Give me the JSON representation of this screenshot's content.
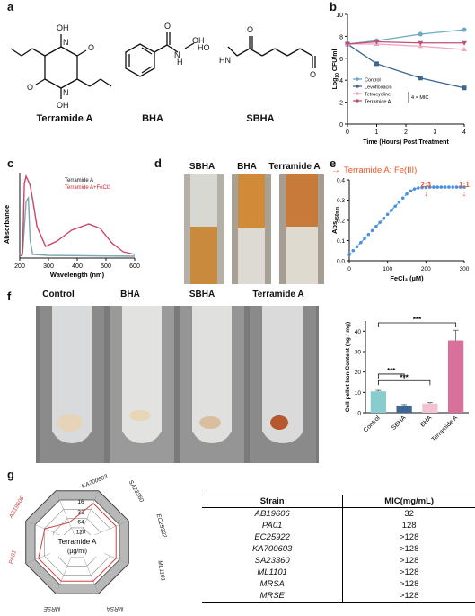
{
  "panel_labels": {
    "a": "a",
    "b": "b",
    "c": "c",
    "d": "d",
    "e": "e",
    "f": "f",
    "g": "g"
  },
  "panel_a": {
    "compounds": [
      "Terramide A",
      "BHA",
      "SBHA"
    ],
    "atoms": {
      "oh": "OH",
      "o": "O",
      "n": "N",
      "hn": "HN",
      "ho": "HO",
      "nh": "NH",
      "h": "H"
    }
  },
  "chart_data": [
    {
      "panel": "b",
      "type": "line",
      "xlabel": "Time (Hours) Post Treatment",
      "ylabel_main": "Log",
      "ylabel_sub": "10",
      "ylabel_rest": " CFU/ml",
      "xlim": [
        0,
        4
      ],
      "ylim": [
        0,
        10
      ],
      "xticks": [
        "0",
        "1",
        "2",
        "3",
        "4"
      ],
      "yticks": [
        "0",
        "2",
        "4",
        "6",
        "8",
        "10"
      ],
      "x": [
        0,
        1,
        2.5,
        4
      ],
      "series": [
        {
          "name": "Control",
          "values": [
            7.3,
            7.6,
            8.2,
            8.6
          ],
          "color": "#6aa8c7"
        },
        {
          "name": "Levofloxacin",
          "values": [
            7.3,
            5.5,
            4.2,
            3.3
          ],
          "color": "#3e6690"
        },
        {
          "name": "Tetracycline",
          "values": [
            7.3,
            7.3,
            7.1,
            6.8
          ],
          "color": "#f0a8c0"
        },
        {
          "name": "Terramide A",
          "values": [
            7.3,
            7.5,
            7.4,
            7.4
          ],
          "color": "#c0507a"
        }
      ],
      "bracket_label": "4 × MIC"
    },
    {
      "panel": "c",
      "type": "line",
      "xlabel": "Wavelength (nm)",
      "ylabel": "Absorbance",
      "xlim": [
        200,
        600
      ],
      "xticks": [
        "200",
        "300",
        "400",
        "500",
        "600"
      ],
      "series": [
        {
          "name": "Terramide A",
          "color": "#7aa6b5"
        },
        {
          "name": "Terramide A+FeCl3",
          "color": "#cc4466"
        }
      ],
      "legend_colors": [
        "#111111",
        "#cc2233"
      ]
    },
    {
      "panel": "e",
      "type": "scatter",
      "xlabel": "FeCl₃ (µM)",
      "ylabel_main": "Abs",
      "ylabel_sub": "450nm",
      "xlim": [
        0,
        300
      ],
      "ylim": [
        0,
        0.4
      ],
      "xticks": [
        "0",
        "100",
        "200",
        "300"
      ],
      "yticks": [
        "0.0",
        "0.1",
        "0.2",
        "0.3",
        "0.4"
      ],
      "x": [
        0,
        10,
        20,
        30,
        40,
        50,
        60,
        70,
        80,
        90,
        100,
        110,
        120,
        130,
        140,
        150,
        160,
        170,
        180,
        190,
        200,
        210,
        220,
        230,
        240,
        250,
        260,
        270,
        280,
        290,
        300
      ],
      "y": [
        0.03,
        0.05,
        0.07,
        0.09,
        0.11,
        0.13,
        0.15,
        0.17,
        0.19,
        0.21,
        0.23,
        0.25,
        0.27,
        0.29,
        0.31,
        0.33,
        0.345,
        0.355,
        0.36,
        0.362,
        0.363,
        0.364,
        0.364,
        0.364,
        0.364,
        0.364,
        0.364,
        0.364,
        0.364,
        0.364,
        0.364
      ],
      "annotation": "Terramide A: Fe(III)",
      "ratio_labels": [
        {
          "text": "2:3",
          "x": 200
        },
        {
          "text": "1:1",
          "x": 300
        }
      ],
      "color": "#4a90e2",
      "accent": "#ee5522"
    },
    {
      "panel": "f",
      "type": "bar",
      "ylabel": "Cell pellet Iron Content (ng / mg)",
      "categories": [
        "Control",
        "SBHA",
        "BHA",
        "Terramide A"
      ],
      "values": [
        10.5,
        3.5,
        4.5,
        35.5
      ],
      "errors": [
        0.5,
        0.5,
        0.5,
        5
      ],
      "colors": [
        "#88cccc",
        "#3e6690",
        "#f3c2d3",
        "#d7709a"
      ],
      "ylim": [
        0,
        45
      ],
      "yticks": [
        "0",
        "10",
        "20",
        "30",
        "40"
      ],
      "significance": "***"
    },
    {
      "panel": "g",
      "type": "radar",
      "center_label": "Terramide A",
      "center_unit": "(µg/ml)",
      "ring_labels": [
        "16",
        "32",
        "64",
        "128"
      ],
      "axes": [
        "KA700603",
        "SA23360",
        "EC25922",
        "ML1101",
        "MRSA",
        "MRSE",
        "PA01",
        "AB19606"
      ],
      "values": [
        256,
        256,
        256,
        256,
        256,
        256,
        128,
        32
      ],
      "highlight": [
        "PA01",
        "AB19606"
      ],
      "highlight_color": "#cc4444"
    }
  ],
  "panel_d": {
    "tubes": [
      "SBHA",
      "BHA",
      "Terramide A"
    ]
  },
  "panel_f_photos": {
    "tubes": [
      "Control",
      "BHA",
      "SBHA",
      "Terramide A"
    ]
  },
  "table": {
    "headers": [
      "Strain",
      "MIC(mg/mL)"
    ],
    "rows": [
      {
        "strain": "AB19606",
        "mic": "32"
      },
      {
        "strain": "PA01",
        "mic": "128"
      },
      {
        "strain": "EC25922",
        "mic": ">128"
      },
      {
        "strain": "KA700603",
        "mic": ">128"
      },
      {
        "strain": "SA23360",
        "mic": ">128"
      },
      {
        "strain": "ML1101",
        "mic": ">128"
      },
      {
        "strain": "MRSA",
        "mic": ">128"
      },
      {
        "strain": "MRSE",
        "mic": ">128"
      }
    ]
  }
}
